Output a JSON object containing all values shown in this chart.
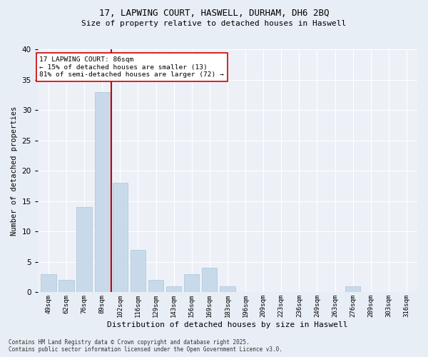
{
  "title1": "17, LAPWING COURT, HASWELL, DURHAM, DH6 2BQ",
  "title2": "Size of property relative to detached houses in Haswell",
  "xlabel": "Distribution of detached houses by size in Haswell",
  "ylabel": "Number of detached properties",
  "bar_color": "#c8daea",
  "bar_edgecolor": "#aac4d8",
  "categories": [
    "49sqm",
    "62sqm",
    "76sqm",
    "89sqm",
    "102sqm",
    "116sqm",
    "129sqm",
    "143sqm",
    "156sqm",
    "169sqm",
    "183sqm",
    "196sqm",
    "209sqm",
    "223sqm",
    "236sqm",
    "249sqm",
    "263sqm",
    "276sqm",
    "289sqm",
    "303sqm",
    "316sqm"
  ],
  "values": [
    3,
    2,
    14,
    33,
    18,
    7,
    2,
    1,
    3,
    4,
    1,
    0,
    0,
    0,
    0,
    0,
    0,
    1,
    0,
    0,
    0
  ],
  "vline_x": 3.5,
  "ylim": [
    0,
    40
  ],
  "yticks": [
    0,
    5,
    10,
    15,
    20,
    25,
    30,
    35,
    40
  ],
  "annotation_title": "17 LAPWING COURT: 86sqm",
  "annotation_line1": "← 15% of detached houses are smaller (13)",
  "annotation_line2": "81% of semi-detached houses are larger (72) →",
  "vline_color": "#cc0000",
  "footer1": "Contains HM Land Registry data © Crown copyright and database right 2025.",
  "footer2": "Contains public sector information licensed under the Open Government Licence v3.0.",
  "bg_color": "#e8eef5",
  "plot_bg_color": "#edf1f7"
}
